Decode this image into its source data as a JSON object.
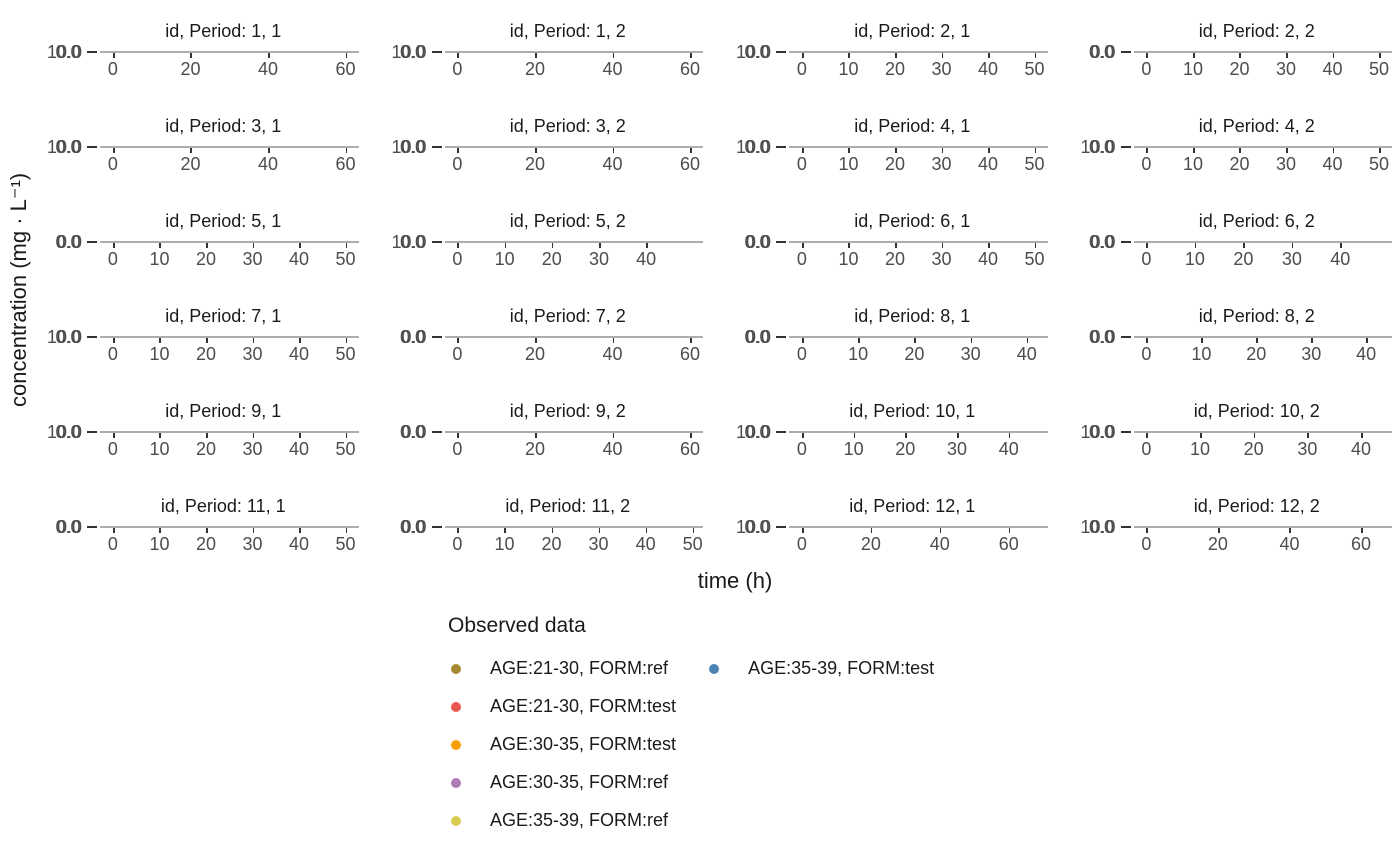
{
  "chart_data": {
    "type": "scatter",
    "title": "",
    "xlabel": "time (h)",
    "ylabel": "concentration (mg · L⁻¹)",
    "facet_layout": {
      "rows": 6,
      "cols": 4,
      "strip_format": "id, Period: <id>, <period>"
    },
    "grid": "off",
    "note": "panels are vertically collapsed; y tick labels overlap; no data points visible",
    "panels": [
      {
        "title": "id, Period: 1, 1",
        "x_ticks": [
          0,
          20,
          40,
          60
        ],
        "x_span": [
          0.05,
          0.95
        ],
        "y_tick_labels": [
          "10.0",
          "0.0"
        ]
      },
      {
        "title": "id, Period: 1, 2",
        "x_ticks": [
          0,
          20,
          40,
          60
        ],
        "x_span": [
          0.05,
          0.95
        ],
        "y_tick_labels": [
          "10.0",
          "0.0"
        ]
      },
      {
        "title": "id, Period: 2, 1",
        "x_ticks": [
          0,
          10,
          20,
          30,
          40,
          50
        ],
        "x_span": [
          0.05,
          0.95
        ],
        "y_tick_labels": [
          "10.0",
          "0.0"
        ]
      },
      {
        "title": "id, Period: 2, 2",
        "x_ticks": [
          0,
          10,
          20,
          30,
          40,
          50
        ],
        "x_span": [
          0.05,
          0.95
        ],
        "y_tick_labels": [
          "0.0",
          "0.0"
        ]
      },
      {
        "title": "id, Period: 3, 1",
        "x_ticks": [
          0,
          20,
          40,
          60
        ],
        "x_span": [
          0.05,
          0.95
        ],
        "y_tick_labels": [
          "10.0",
          "0.0"
        ]
      },
      {
        "title": "id, Period: 3, 2",
        "x_ticks": [
          0,
          20,
          40,
          60
        ],
        "x_span": [
          0.05,
          0.95
        ],
        "y_tick_labels": [
          "10.0",
          "0.0"
        ]
      },
      {
        "title": "id, Period: 4, 1",
        "x_ticks": [
          0,
          10,
          20,
          30,
          40,
          50
        ],
        "x_span": [
          0.05,
          0.95
        ],
        "y_tick_labels": [
          "10.0",
          "0.0"
        ]
      },
      {
        "title": "id, Period: 4, 2",
        "x_ticks": [
          0,
          10,
          20,
          30,
          40,
          50
        ],
        "x_span": [
          0.05,
          0.95
        ],
        "y_tick_labels": [
          "10.0",
          "0.0"
        ]
      },
      {
        "title": "id, Period: 5, 1",
        "x_ticks": [
          0,
          10,
          20,
          30,
          40,
          50
        ],
        "x_span": [
          0.05,
          0.95
        ],
        "y_tick_labels": [
          "0.0",
          "0.0"
        ]
      },
      {
        "title": "id, Period: 5, 2",
        "x_ticks": [
          0,
          10,
          20,
          30,
          40
        ],
        "x_span": [
          0.05,
          0.78
        ],
        "y_tick_labels": [
          "10.0",
          "0.0"
        ]
      },
      {
        "title": "id, Period: 6, 1",
        "x_ticks": [
          0,
          10,
          20,
          30,
          40,
          50
        ],
        "x_span": [
          0.05,
          0.95
        ],
        "y_tick_labels": [
          "0.0",
          "0.0"
        ]
      },
      {
        "title": "id, Period: 6, 2",
        "x_ticks": [
          0,
          10,
          20,
          30,
          40
        ],
        "x_span": [
          0.05,
          0.8
        ],
        "y_tick_labels": [
          "0.0",
          "0.0"
        ]
      },
      {
        "title": "id, Period: 7, 1",
        "x_ticks": [
          0,
          10,
          20,
          30,
          40,
          50
        ],
        "x_span": [
          0.05,
          0.95
        ],
        "y_tick_labels": [
          "10.0",
          "0.0"
        ]
      },
      {
        "title": "id, Period: 7, 2",
        "x_ticks": [
          0,
          20,
          40,
          60
        ],
        "x_span": [
          0.05,
          0.95
        ],
        "y_tick_labels": [
          "0.0",
          "0.0"
        ]
      },
      {
        "title": "id, Period: 8, 1",
        "x_ticks": [
          0,
          10,
          20,
          30,
          40
        ],
        "x_span": [
          0.05,
          0.92
        ],
        "y_tick_labels": [
          "0.0",
          "0.0"
        ]
      },
      {
        "title": "id, Period: 8, 2",
        "x_ticks": [
          0,
          10,
          20,
          30,
          40
        ],
        "x_span": [
          0.05,
          0.9
        ],
        "y_tick_labels": [
          "0.0",
          "0.0"
        ]
      },
      {
        "title": "id, Period: 9, 1",
        "x_ticks": [
          0,
          10,
          20,
          30,
          40,
          50
        ],
        "x_span": [
          0.05,
          0.95
        ],
        "y_tick_labels": [
          "10.0",
          "0.0"
        ]
      },
      {
        "title": "id, Period: 9, 2",
        "x_ticks": [
          0,
          20,
          40,
          60
        ],
        "x_span": [
          0.05,
          0.95
        ],
        "y_tick_labels": [
          "0.0",
          "0.0"
        ]
      },
      {
        "title": "id, Period: 10, 1",
        "x_ticks": [
          0,
          10,
          20,
          30,
          40
        ],
        "x_span": [
          0.05,
          0.85
        ],
        "y_tick_labels": [
          "10.0",
          "0.0"
        ]
      },
      {
        "title": "id, Period: 10, 2",
        "x_ticks": [
          0,
          10,
          20,
          30,
          40
        ],
        "x_span": [
          0.05,
          0.88
        ],
        "y_tick_labels": [
          "10.0",
          "0.0"
        ]
      },
      {
        "title": "id, Period: 11, 1",
        "x_ticks": [
          0,
          10,
          20,
          30,
          40,
          50
        ],
        "x_span": [
          0.05,
          0.95
        ],
        "y_tick_labels": [
          "0.0",
          "0.0"
        ]
      },
      {
        "title": "id, Period: 11, 2",
        "x_ticks": [
          0,
          10,
          20,
          30,
          40,
          50
        ],
        "x_span": [
          0.05,
          0.96
        ],
        "y_tick_labels": [
          "0.0",
          "0.0"
        ]
      },
      {
        "title": "id, Period: 12, 1",
        "x_ticks": [
          0,
          20,
          40,
          60
        ],
        "x_span": [
          0.05,
          0.85
        ],
        "y_tick_labels": [
          "10.0",
          "0.0"
        ]
      },
      {
        "title": "id, Period: 12, 2",
        "x_ticks": [
          0,
          20,
          40,
          60
        ],
        "x_span": [
          0.05,
          0.88
        ],
        "y_tick_labels": [
          "10.0",
          "0.0"
        ]
      }
    ],
    "legend": {
      "title": "Observed data",
      "position": "bottom",
      "columns": [
        5,
        1
      ],
      "entries": [
        {
          "label": "AGE:21-30, FORM:ref",
          "color": "#A6892F"
        },
        {
          "label": "AGE:21-30, FORM:test",
          "color": "#E9584E"
        },
        {
          "label": "AGE:30-35, FORM:test",
          "color": "#F9A008"
        },
        {
          "label": "AGE:30-35, FORM:ref",
          "color": "#AE7CB4"
        },
        {
          "label": "AGE:35-39, FORM:ref",
          "color": "#D8CB52"
        },
        {
          "label": "AGE:35-39, FORM:test",
          "color": "#4C83B5"
        }
      ]
    },
    "colors": {
      "axis_line": "#adadad",
      "tick_mark": "#333333",
      "tick_label": "#4d4d4d",
      "text": "#1a1a1a"
    }
  }
}
